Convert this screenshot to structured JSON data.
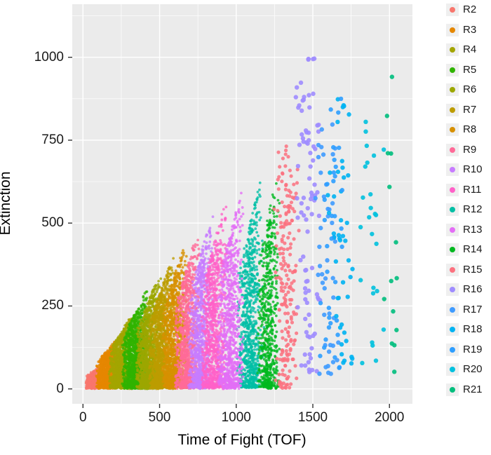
{
  "chart_data": {
    "type": "scatter",
    "title": "",
    "xlabel": "Time of Fight (TOF)",
    "ylabel": "Extinction",
    "xlim": [
      -70,
      2150
    ],
    "ylim": [
      -45,
      1160
    ],
    "xticks": [
      0,
      500,
      1000,
      1500,
      2000
    ],
    "yticks": [
      0,
      250,
      500,
      750,
      1000
    ],
    "xticks_minor": [
      250,
      750,
      1250,
      1750
    ],
    "yticks_minor": [
      125,
      375,
      625,
      875,
      1125
    ],
    "grid": true,
    "legend_position": "right",
    "panel_bg": "#EBEBEB",
    "grid_color": "#FFFFFF",
    "tick_color": "#333333",
    "text_color": "#1A1A1A",
    "legend_key_bg": "#EFEFEF",
    "seed": 42,
    "series": [
      {
        "name": "R2",
        "color": "#F8766D",
        "x_center": 70,
        "x_width": 95,
        "y_max": 60,
        "count": 500,
        "kind": "dense"
      },
      {
        "name": "R3",
        "color": "#E58700",
        "x_center": 160,
        "x_width": 135,
        "y_max": 140,
        "count": 900,
        "kind": "dense"
      },
      {
        "name": "R4",
        "color": "#A3A500",
        "x_center": 250,
        "x_width": 145,
        "y_max": 210,
        "count": 1100,
        "kind": "dense"
      },
      {
        "name": "R5",
        "color": "#2FB400",
        "x_center": 340,
        "x_width": 150,
        "y_max": 280,
        "count": 1200,
        "kind": "dense"
      },
      {
        "name": "R6",
        "color": "#9CA700",
        "x_center": 430,
        "x_width": 150,
        "y_max": 330,
        "count": 1200,
        "kind": "dense"
      },
      {
        "name": "R7",
        "color": "#BD9C00",
        "x_center": 515,
        "x_width": 150,
        "y_max": 380,
        "count": 1100,
        "kind": "dense"
      },
      {
        "name": "R8",
        "color": "#D79000",
        "x_center": 600,
        "x_width": 150,
        "y_max": 430,
        "count": 1000,
        "kind": "dense"
      },
      {
        "name": "R9",
        "color": "#FF6A98",
        "x_center": 685,
        "x_width": 150,
        "y_max": 470,
        "count": 950,
        "kind": "dense"
      },
      {
        "name": "R10",
        "color": "#C77CFF",
        "x_center": 770,
        "x_width": 150,
        "y_max": 510,
        "count": 900,
        "kind": "dense"
      },
      {
        "name": "R11",
        "color": "#FF61C8",
        "x_center": 855,
        "x_width": 150,
        "y_max": 550,
        "count": 850,
        "kind": "dense"
      },
      {
        "name": "R12",
        "color": "#00BFA5",
        "x_center": 1090,
        "x_width": 160,
        "y_max": 620,
        "count": 800,
        "kind": "dense"
      },
      {
        "name": "R13",
        "color": "#E36EF6",
        "x_center": 960,
        "x_width": 155,
        "y_max": 580,
        "count": 820,
        "kind": "dense"
      },
      {
        "name": "R14",
        "color": "#00B81F",
        "x_center": 1210,
        "x_width": 135,
        "y_max": 650,
        "count": 600,
        "kind": "dense"
      },
      {
        "name": "R15",
        "color": "#FC717F",
        "x_center": 1330,
        "x_width": 150,
        "y_max": 730,
        "count": 200,
        "kind": "semisparse"
      },
      {
        "name": "R16",
        "color": "#9F8CFF",
        "x_center": 1470,
        "x_width": 170,
        "y_max": 1000,
        "count": 90,
        "kind": "sparse"
      },
      {
        "name": "R17",
        "color": "#3F9BFF",
        "x_center": 1585,
        "x_width": 150,
        "y_max": 800,
        "count": 45,
        "kind": "sparse"
      },
      {
        "name": "R18",
        "color": "#00B3F2",
        "x_center": 1690,
        "x_width": 170,
        "y_max": 880,
        "count": 45,
        "kind": "sparse"
      },
      {
        "name": "R19",
        "color": "#2E9EFF",
        "x_center": 1630,
        "x_width": 150,
        "y_max": 950,
        "count": 35,
        "kind": "sparse"
      },
      {
        "name": "R20",
        "color": "#00C1DE",
        "x_center": 1890,
        "x_width": 190,
        "y_max": 910,
        "count": 25,
        "kind": "sparse"
      },
      {
        "name": "R21",
        "color": "#00BE7D",
        "x_center": 2020,
        "x_width": 130,
        "y_max": 1060,
        "count": 14,
        "kind": "sparse"
      }
    ]
  },
  "legend": {
    "items": [
      {
        "label": "R2"
      },
      {
        "label": "R3"
      },
      {
        "label": "R4"
      },
      {
        "label": "R5"
      },
      {
        "label": "R6"
      },
      {
        "label": "R7"
      },
      {
        "label": "R8"
      },
      {
        "label": "R9"
      },
      {
        "label": "R10"
      },
      {
        "label": "R11"
      },
      {
        "label": "R12"
      },
      {
        "label": "R13"
      },
      {
        "label": "R14"
      },
      {
        "label": "R15"
      },
      {
        "label": "R16"
      },
      {
        "label": "R17"
      },
      {
        "label": "R18"
      },
      {
        "label": "R19"
      },
      {
        "label": "R20"
      },
      {
        "label": "R21"
      }
    ]
  }
}
